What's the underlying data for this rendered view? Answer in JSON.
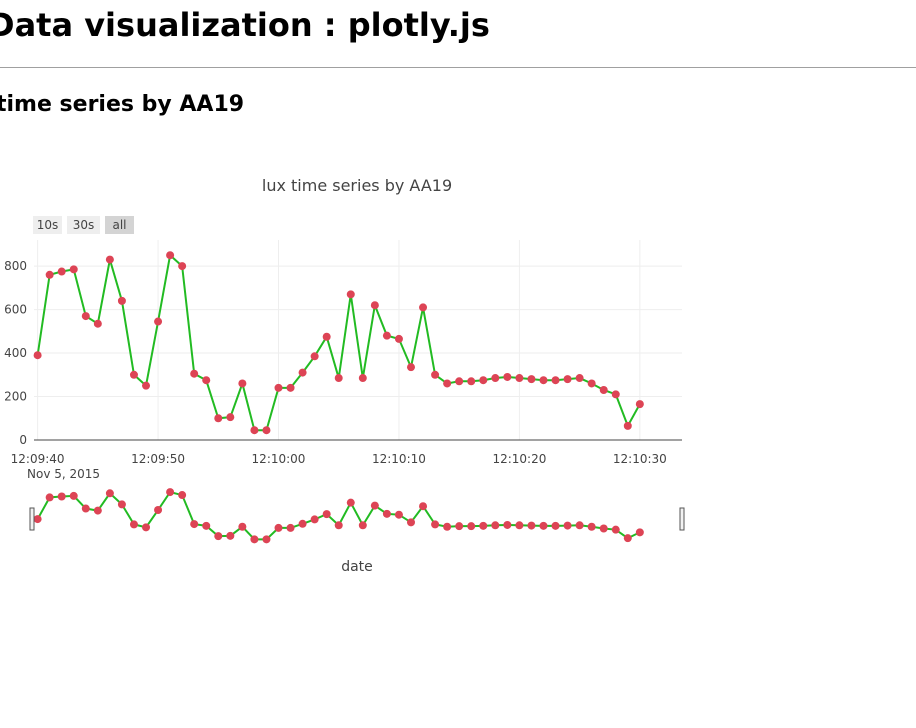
{
  "page": {
    "title": "Data visualization : plotly.js",
    "section_title": "time series by AA19"
  },
  "colors": {
    "line": "#22bb22",
    "marker": "#dd4455",
    "grid": "#eeeeee",
    "axis": "#444444",
    "button_bg": "#eeeeee",
    "button_active_bg": "#d4d4d4",
    "text": "#444444"
  },
  "chart_data": {
    "type": "line",
    "title": "lux time series by AA19",
    "xlabel": "date",
    "ylabel": "",
    "range_selector": [
      {
        "label": "10s",
        "active": false
      },
      {
        "label": "30s",
        "active": false
      },
      {
        "label": "all",
        "active": true
      }
    ],
    "x_ticks": [
      "12:09:40",
      "12:09:50",
      "12:10:00",
      "12:10:10",
      "12:10:20",
      "12:10:30"
    ],
    "x_ticks_seconds": [
      0,
      10,
      20,
      30,
      40,
      50
    ],
    "x_date_label": "Nov 5, 2015",
    "x_range_seconds": [
      -0.3,
      53.5
    ],
    "y_ticks": [
      0,
      200,
      400,
      600,
      800
    ],
    "ylim": [
      0,
      920
    ],
    "rangeslider_ylim": [
      0,
      920
    ],
    "series": [
      {
        "name": "lux",
        "x_seconds": [
          0,
          1,
          2,
          3,
          4,
          5,
          6,
          7,
          8,
          9,
          10,
          11,
          12,
          13,
          14,
          15,
          16,
          17,
          18,
          19,
          20,
          21,
          22,
          23,
          24,
          25,
          26,
          27,
          28,
          29,
          30,
          31,
          32,
          33,
          34,
          35,
          36,
          37,
          38,
          39,
          40,
          41,
          42,
          43,
          44,
          45,
          46,
          47,
          48,
          49,
          50
        ],
        "values": [
          390,
          760,
          775,
          785,
          570,
          535,
          830,
          640,
          300,
          250,
          545,
          850,
          800,
          305,
          275,
          100,
          105,
          260,
          45,
          45,
          240,
          240,
          310,
          385,
          475,
          285,
          670,
          285,
          620,
          480,
          465,
          335,
          610,
          300,
          260,
          270,
          270,
          275,
          285,
          290,
          285,
          280,
          275,
          275,
          280,
          285,
          260,
          230,
          210,
          65,
          165
        ]
      }
    ]
  }
}
